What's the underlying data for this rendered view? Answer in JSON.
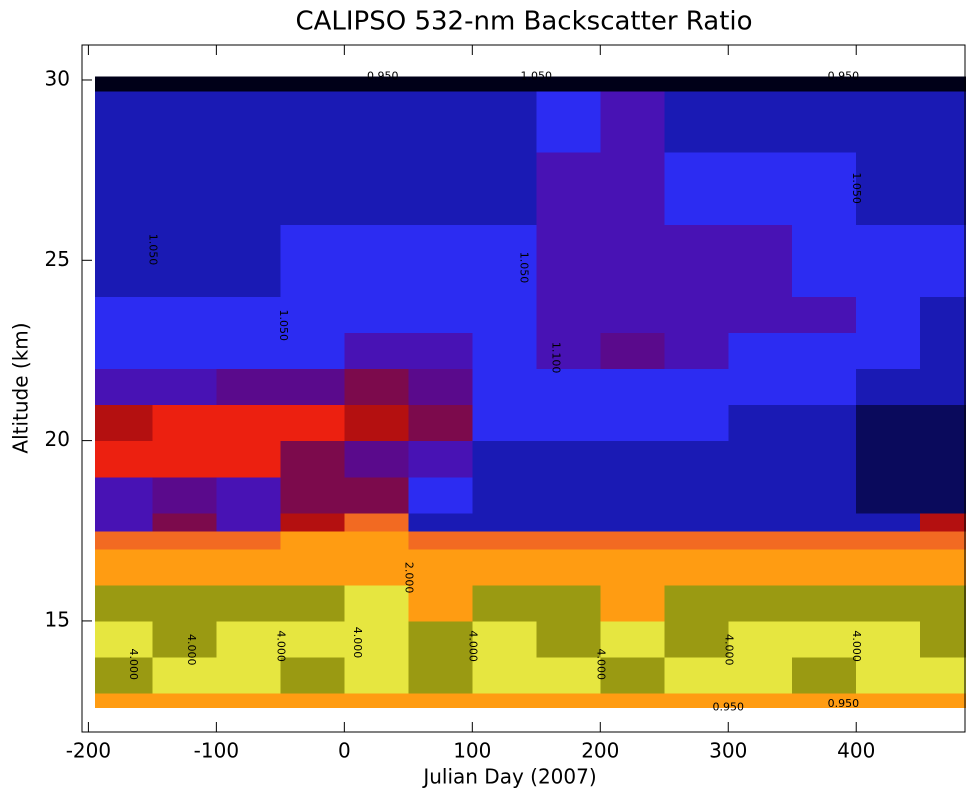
{
  "chart_data": {
    "type": "contour",
    "title": "CALIPSO 532-nm Backscatter Ratio",
    "x_label": "Julian Day (2007)",
    "y_label": "Altitude (km)",
    "xlim": [
      -205,
      485
    ],
    "ylim": [
      11.92,
      30.97
    ],
    "xticks": [
      -200,
      -100,
      0,
      100,
      200,
      300,
      400
    ],
    "yticks": [
      15,
      20,
      25,
      30
    ],
    "x_edges": [
      -195,
      -150,
      -100,
      -50,
      0,
      50,
      100,
      150,
      200,
      250,
      300,
      350,
      400,
      450,
      486
    ],
    "y_edges": [
      12.6,
      13,
      14,
      15,
      16,
      17,
      17.5,
      18,
      19,
      20,
      21,
      22,
      23,
      24,
      26,
      28,
      29.7,
      30.1
    ],
    "levels": [
      0.95,
      1.0,
      1.05,
      1.1,
      1.15,
      1.2,
      1.3,
      1.5,
      2,
      3,
      4,
      5
    ],
    "colors": [
      "#000018",
      "#0a0a5c",
      "#1a1ab4",
      "#2c2cf2",
      "#4812b4",
      "#5a0a8c",
      "#7c0a4c",
      "#b41010",
      "#ec2010",
      "#f26a22",
      "#ff9c12",
      "#9a9a12",
      "#e6e640"
    ],
    "z": [
      [
        3.5,
        3.5,
        3.5,
        3.5,
        3.5,
        3.5,
        3.5,
        3.5,
        3.5,
        3.5,
        3.5,
        3.5,
        3.5,
        3.5
      ],
      [
        4.5,
        5.2,
        5.2,
        4.5,
        5.2,
        4.5,
        5.2,
        5.2,
        4.5,
        5.2,
        5.2,
        4.5,
        5.2,
        5.2
      ],
      [
        5.2,
        4.5,
        5.2,
        5.2,
        5.2,
        4.5,
        5.2,
        4.5,
        5.2,
        4.5,
        5.2,
        5.2,
        5.2,
        4.5
      ],
      [
        4.5,
        4.5,
        4.5,
        4.5,
        5.2,
        3.5,
        4.5,
        4.5,
        3.5,
        4.5,
        4.5,
        4.5,
        4.5,
        4.5
      ],
      [
        3.5,
        3.5,
        3.5,
        3.5,
        3.5,
        3.5,
        3.5,
        3.5,
        3.5,
        3.5,
        3.5,
        3.5,
        3.5,
        3.5
      ],
      [
        2.5,
        2.5,
        2.5,
        3.5,
        3.5,
        2.5,
        2.5,
        2.5,
        2.5,
        2.5,
        2.5,
        2.5,
        2.5,
        2.5
      ],
      [
        1.12,
        1.2,
        1.12,
        1.3,
        2.5,
        1.04,
        1.04,
        1.02,
        1.02,
        1.02,
        1.02,
        1.04,
        1.02,
        1.4
      ],
      [
        1.12,
        1.16,
        1.12,
        1.2,
        1.25,
        1.08,
        1.0,
        1.0,
        1.0,
        1.02,
        1.02,
        1.02,
        0.97,
        0.98
      ],
      [
        1.6,
        1.7,
        1.6,
        1.25,
        1.16,
        1.12,
        1.04,
        1.02,
        1.02,
        1.02,
        1.03,
        1.03,
        0.97,
        0.97
      ],
      [
        1.4,
        1.6,
        1.7,
        1.7,
        1.3,
        1.2,
        1.08,
        1.06,
        1.06,
        1.05,
        1.04,
        1.02,
        0.98,
        0.97
      ],
      [
        1.1,
        1.12,
        1.15,
        1.17,
        1.22,
        1.17,
        1.06,
        1.08,
        1.07,
        1.06,
        1.08,
        1.06,
        1.02,
        1.01
      ],
      [
        1.06,
        1.07,
        1.08,
        1.08,
        1.1,
        1.1,
        1.07,
        1.14,
        1.17,
        1.1,
        1.08,
        1.08,
        1.05,
        1.03
      ],
      [
        1.05,
        1.05,
        1.06,
        1.06,
        1.06,
        1.07,
        1.08,
        1.12,
        1.13,
        1.12,
        1.11,
        1.1,
        1.06,
        1.04
      ],
      [
        1.04,
        1.04,
        1.04,
        1.05,
        1.05,
        1.06,
        1.06,
        1.11,
        1.12,
        1.11,
        1.1,
        1.06,
        1.06,
        1.05
      ],
      [
        1.03,
        1.03,
        1.03,
        1.02,
        1.02,
        1.03,
        1.04,
        1.12,
        1.11,
        1.09,
        1.06,
        1.06,
        1.04,
        1.04
      ],
      [
        1.02,
        1.02,
        1.0,
        1.0,
        1.0,
        1.01,
        1.03,
        1.08,
        1.1,
        1.04,
        1.02,
        1.01,
        1.01,
        1.01
      ],
      [
        0.9,
        0.9,
        0.9,
        0.9,
        0.9,
        0.9,
        0.9,
        0.9,
        0.9,
        0.9,
        0.9,
        0.9,
        0.9,
        0.9
      ]
    ],
    "annotations": [
      {
        "text": "0.950",
        "x": 30,
        "y": 30.1
      },
      {
        "text": "1.050",
        "x": 150,
        "y": 30.1
      },
      {
        "text": "0.950",
        "x": 390,
        "y": 30.1
      },
      {
        "text": "1.050",
        "x": -150,
        "y": 25.3
      },
      {
        "text": "1.050",
        "x": -48,
        "y": 23.2
      },
      {
        "text": "1.050",
        "x": 140,
        "y": 24.8
      },
      {
        "text": "1.100",
        "x": 165,
        "y": 22.3
      },
      {
        "text": "1.050",
        "x": 400,
        "y": 27
      },
      {
        "text": "4.000",
        "x": -165,
        "y": 13.8
      },
      {
        "text": "4.000",
        "x": -120,
        "y": 14.2
      },
      {
        "text": "4.000",
        "x": -50,
        "y": 14.3
      },
      {
        "text": "4.000",
        "x": 10,
        "y": 14.4
      },
      {
        "text": "2.000",
        "x": 50,
        "y": 16.2
      },
      {
        "text": "4.000",
        "x": 100,
        "y": 14.3
      },
      {
        "text": "4.000",
        "x": 200,
        "y": 13.8
      },
      {
        "text": "4.000",
        "x": 300,
        "y": 14.2
      },
      {
        "text": "4.000",
        "x": 400,
        "y": 14.3
      },
      {
        "text": "0.950",
        "x": 300,
        "y": 12.6
      },
      {
        "text": "0.950",
        "x": 390,
        "y": 12.7
      }
    ]
  }
}
